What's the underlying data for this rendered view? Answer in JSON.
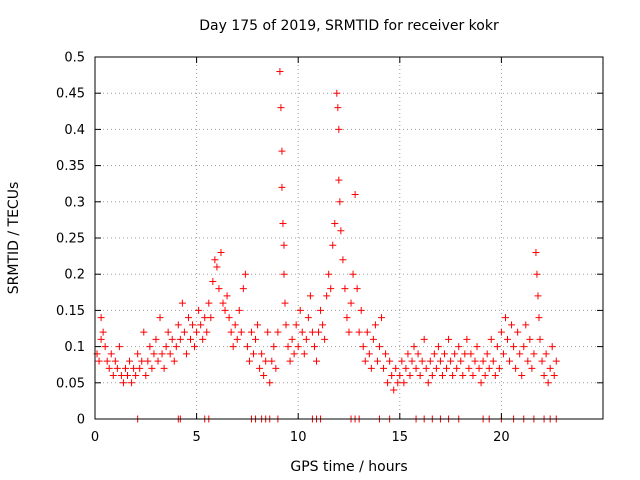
{
  "chart_data": {
    "type": "scatter",
    "title": "Day 175 of 2019, SRMTID for receiver kokr",
    "xlabel": "GPS time / hours",
    "ylabel": "SRMTID / TECUs",
    "xlim": [
      0,
      25
    ],
    "ylim": [
      0,
      0.5
    ],
    "x_ticks": [
      0,
      5,
      10,
      15,
      20
    ],
    "x_tick_labels": [
      "0",
      "5",
      "10",
      "15",
      "20"
    ],
    "y_ticks": [
      0,
      0.05,
      0.1,
      0.15,
      0.2,
      0.25,
      0.3,
      0.35,
      0.4,
      0.45,
      0.5
    ],
    "y_tick_labels": [
      "0",
      "0.05",
      "0.1",
      "0.15",
      "0.2",
      "0.25",
      "0.3",
      "0.35",
      "0.4",
      "0.45",
      "0.5"
    ],
    "grid": true,
    "marker": "+",
    "color": "#ff0000",
    "series": [
      {
        "name": "SRMTID",
        "points": [
          [
            0.1,
            0.09
          ],
          [
            0.2,
            0.08
          ],
          [
            0.3,
            0.11
          ],
          [
            0.3,
            0.14
          ],
          [
            0.4,
            0.12
          ],
          [
            0.5,
            0.1
          ],
          [
            0.6,
            0.08
          ],
          [
            0.7,
            0.07
          ],
          [
            0.8,
            0.09
          ],
          [
            0.9,
            0.06
          ],
          [
            1.0,
            0.08
          ],
          [
            1.1,
            0.07
          ],
          [
            1.2,
            0.1
          ],
          [
            1.3,
            0.06
          ],
          [
            1.4,
            0.05
          ],
          [
            1.5,
            0.07
          ],
          [
            1.6,
            0.06
          ],
          [
            1.7,
            0.08
          ],
          [
            1.8,
            0.05
          ],
          [
            1.9,
            0.07
          ],
          [
            2.0,
            0.06
          ],
          [
            2.1,
            0.09
          ],
          [
            2.2,
            0.07
          ],
          [
            2.3,
            0.08
          ],
          [
            2.4,
            0.12
          ],
          [
            2.5,
            0.06
          ],
          [
            2.6,
            0.08
          ],
          [
            2.7,
            0.1
          ],
          [
            2.8,
            0.07
          ],
          [
            2.9,
            0.09
          ],
          [
            3.0,
            0.11
          ],
          [
            3.1,
            0.08
          ],
          [
            3.2,
            0.14
          ],
          [
            3.3,
            0.09
          ],
          [
            3.4,
            0.07
          ],
          [
            3.5,
            0.1
          ],
          [
            3.6,
            0.12
          ],
          [
            3.7,
            0.09
          ],
          [
            3.8,
            0.11
          ],
          [
            3.9,
            0.08
          ],
          [
            4.0,
            0.1
          ],
          [
            4.1,
            0.13
          ],
          [
            4.2,
            0.11
          ],
          [
            4.3,
            0.16
          ],
          [
            4.4,
            0.12
          ],
          [
            4.5,
            0.09
          ],
          [
            4.6,
            0.14
          ],
          [
            4.7,
            0.11
          ],
          [
            4.8,
            0.13
          ],
          [
            4.9,
            0.1
          ],
          [
            5.0,
            0.12
          ],
          [
            5.1,
            0.15
          ],
          [
            5.2,
            0.13
          ],
          [
            5.3,
            0.11
          ],
          [
            5.4,
            0.14
          ],
          [
            5.5,
            0.12
          ],
          [
            5.6,
            0.16
          ],
          [
            5.7,
            0.14
          ],
          [
            5.8,
            0.19
          ],
          [
            5.9,
            0.22
          ],
          [
            6.0,
            0.21
          ],
          [
            6.1,
            0.18
          ],
          [
            6.2,
            0.23
          ],
          [
            6.3,
            0.16
          ],
          [
            6.4,
            0.15
          ],
          [
            6.5,
            0.17
          ],
          [
            6.6,
            0.14
          ],
          [
            6.7,
            0.12
          ],
          [
            6.8,
            0.1
          ],
          [
            6.9,
            0.13
          ],
          [
            7.0,
            0.11
          ],
          [
            7.1,
            0.15
          ],
          [
            7.2,
            0.12
          ],
          [
            7.3,
            0.18
          ],
          [
            7.4,
            0.2
          ],
          [
            7.5,
            0.1
          ],
          [
            7.6,
            0.08
          ],
          [
            7.7,
            0.12
          ],
          [
            7.8,
            0.09
          ],
          [
            7.9,
            0.11
          ],
          [
            8.0,
            0.13
          ],
          [
            8.1,
            0.07
          ],
          [
            8.2,
            0.09
          ],
          [
            8.3,
            0.06
          ],
          [
            8.4,
            0.08
          ],
          [
            8.5,
            0.12
          ],
          [
            8.6,
            0.05
          ],
          [
            8.7,
            0.08
          ],
          [
            8.8,
            0.1
          ],
          [
            8.9,
            0.07
          ],
          [
            9.0,
            0.12
          ],
          [
            9.1,
            0.48
          ],
          [
            9.15,
            0.43
          ],
          [
            9.2,
            0.37
          ],
          [
            9.2,
            0.32
          ],
          [
            9.25,
            0.27
          ],
          [
            9.3,
            0.24
          ],
          [
            9.3,
            0.2
          ],
          [
            9.35,
            0.16
          ],
          [
            9.4,
            0.13
          ],
          [
            9.5,
            0.1
          ],
          [
            9.6,
            0.08
          ],
          [
            9.7,
            0.11
          ],
          [
            9.8,
            0.09
          ],
          [
            9.9,
            0.13
          ],
          [
            10.0,
            0.1
          ],
          [
            10.1,
            0.15
          ],
          [
            10.2,
            0.12
          ],
          [
            10.3,
            0.09
          ],
          [
            10.4,
            0.11
          ],
          [
            10.5,
            0.14
          ],
          [
            10.6,
            0.17
          ],
          [
            10.7,
            0.12
          ],
          [
            10.8,
            0.1
          ],
          [
            10.9,
            0.08
          ],
          [
            11.0,
            0.12
          ],
          [
            11.1,
            0.15
          ],
          [
            11.2,
            0.13
          ],
          [
            11.3,
            0.11
          ],
          [
            11.4,
            0.17
          ],
          [
            11.5,
            0.2
          ],
          [
            11.6,
            0.18
          ],
          [
            11.7,
            0.24
          ],
          [
            11.8,
            0.27
          ],
          [
            11.9,
            0.45
          ],
          [
            11.95,
            0.43
          ],
          [
            12.0,
            0.4
          ],
          [
            12.0,
            0.33
          ],
          [
            12.05,
            0.3
          ],
          [
            12.1,
            0.26
          ],
          [
            12.2,
            0.22
          ],
          [
            12.3,
            0.18
          ],
          [
            12.4,
            0.14
          ],
          [
            12.5,
            0.12
          ],
          [
            12.6,
            0.16
          ],
          [
            12.7,
            0.2
          ],
          [
            12.8,
            0.31
          ],
          [
            12.9,
            0.18
          ],
          [
            13.0,
            0.12
          ],
          [
            13.1,
            0.15
          ],
          [
            13.2,
            0.1
          ],
          [
            13.3,
            0.08
          ],
          [
            13.4,
            0.12
          ],
          [
            13.5,
            0.09
          ],
          [
            13.6,
            0.07
          ],
          [
            13.7,
            0.11
          ],
          [
            13.8,
            0.13
          ],
          [
            13.9,
            0.08
          ],
          [
            14.0,
            0.1
          ],
          [
            14.1,
            0.14
          ],
          [
            14.2,
            0.07
          ],
          [
            14.3,
            0.09
          ],
          [
            14.4,
            0.05
          ],
          [
            14.5,
            0.08
          ],
          [
            14.6,
            0.06
          ],
          [
            14.7,
            0.04
          ],
          [
            14.8,
            0.07
          ],
          [
            14.9,
            0.05
          ],
          [
            15.0,
            0.06
          ],
          [
            15.1,
            0.08
          ],
          [
            15.2,
            0.05
          ],
          [
            15.3,
            0.07
          ],
          [
            15.4,
            0.09
          ],
          [
            15.5,
            0.06
          ],
          [
            15.6,
            0.08
          ],
          [
            15.7,
            0.1
          ],
          [
            15.8,
            0.07
          ],
          [
            15.9,
            0.09
          ],
          [
            16.0,
            0.06
          ],
          [
            16.1,
            0.08
          ],
          [
            16.2,
            0.11
          ],
          [
            16.3,
            0.07
          ],
          [
            16.4,
            0.05
          ],
          [
            16.5,
            0.08
          ],
          [
            16.6,
            0.06
          ],
          [
            16.7,
            0.09
          ],
          [
            16.8,
            0.07
          ],
          [
            16.9,
            0.1
          ],
          [
            17.0,
            0.08
          ],
          [
            17.1,
            0.06
          ],
          [
            17.2,
            0.09
          ],
          [
            17.3,
            0.07
          ],
          [
            17.4,
            0.11
          ],
          [
            17.5,
            0.08
          ],
          [
            17.6,
            0.06
          ],
          [
            17.7,
            0.09
          ],
          [
            17.8,
            0.07
          ],
          [
            17.9,
            0.1
          ],
          [
            18.0,
            0.08
          ],
          [
            18.1,
            0.06
          ],
          [
            18.2,
            0.09
          ],
          [
            18.3,
            0.11
          ],
          [
            18.4,
            0.07
          ],
          [
            18.5,
            0.09
          ],
          [
            18.6,
            0.06
          ],
          [
            18.7,
            0.08
          ],
          [
            18.8,
            0.1
          ],
          [
            18.9,
            0.07
          ],
          [
            19.0,
            0.05
          ],
          [
            19.1,
            0.08
          ],
          [
            19.2,
            0.06
          ],
          [
            19.3,
            0.09
          ],
          [
            19.4,
            0.07
          ],
          [
            19.5,
            0.11
          ],
          [
            19.6,
            0.08
          ],
          [
            19.7,
            0.06
          ],
          [
            19.8,
            0.1
          ],
          [
            19.9,
            0.07
          ],
          [
            20.0,
            0.12
          ],
          [
            20.1,
            0.09
          ],
          [
            20.2,
            0.14
          ],
          [
            20.3,
            0.11
          ],
          [
            20.4,
            0.08
          ],
          [
            20.5,
            0.13
          ],
          [
            20.6,
            0.1
          ],
          [
            20.7,
            0.07
          ],
          [
            20.8,
            0.12
          ],
          [
            20.9,
            0.09
          ],
          [
            21.0,
            0.06
          ],
          [
            21.1,
            0.1
          ],
          [
            21.2,
            0.13
          ],
          [
            21.3,
            0.08
          ],
          [
            21.4,
            0.11
          ],
          [
            21.5,
            0.07
          ],
          [
            21.6,
            0.09
          ],
          [
            21.7,
            0.23
          ],
          [
            21.75,
            0.2
          ],
          [
            21.8,
            0.17
          ],
          [
            21.85,
            0.14
          ],
          [
            21.9,
            0.11
          ],
          [
            22.0,
            0.08
          ],
          [
            22.1,
            0.06
          ],
          [
            22.2,
            0.09
          ],
          [
            22.3,
            0.05
          ],
          [
            22.4,
            0.07
          ],
          [
            22.5,
            0.1
          ],
          [
            22.6,
            0.06
          ],
          [
            22.7,
            0.08
          ]
        ],
        "zero_points_x": [
          2.1,
          4.1,
          4.2,
          5.4,
          5.6,
          7.7,
          7.9,
          8.2,
          8.4,
          8.6,
          9.0,
          10.7,
          10.9,
          11.1,
          12.6,
          12.8,
          13.0,
          14.0,
          14.5,
          15.8,
          16.2,
          16.6,
          17.0,
          17.4,
          17.9,
          19.1,
          19.4,
          20.0,
          20.6,
          21.1,
          21.6,
          22.1,
          22.4,
          22.7
        ]
      }
    ]
  }
}
